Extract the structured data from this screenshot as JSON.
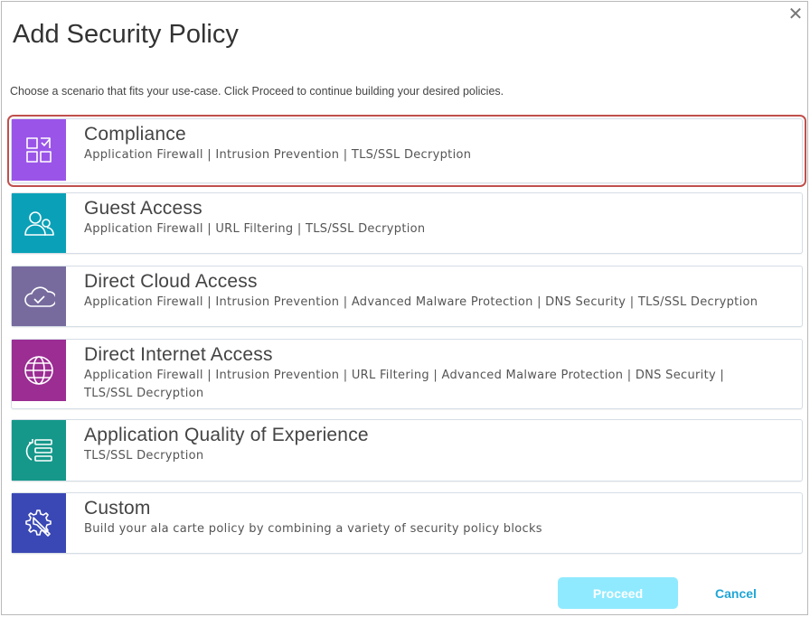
{
  "dialog": {
    "title": "Add Security Policy",
    "subtitle": "Choose a scenario that fits your use-case. Click Proceed to continue building your desired policies.",
    "close_icon": "close-icon"
  },
  "scenarios": [
    {
      "title": "Compliance",
      "desc": "Application Firewall | Intrusion Prevention | TLS/SSL Decryption",
      "icon": "checklist-grid-icon",
      "color": "#9a55e8",
      "selected": true
    },
    {
      "title": "Guest Access",
      "desc": "Application Firewall | URL Filtering | TLS/SSL Decryption",
      "icon": "users-icon",
      "color": "#0aa1b8"
    },
    {
      "title": "Direct Cloud Access",
      "desc": "Application Firewall | Intrusion Prevention | Advanced Malware Protection | DNS Security | TLS/SSL Decryption",
      "icon": "cloud-check-icon",
      "color": "#776b9e"
    },
    {
      "title": "Direct Internet Access",
      "desc": "Application Firewall | Intrusion Prevention | URL Filtering | Advanced Malware Protection | DNS Security | TLS/SSL Decryption",
      "icon": "globe-icon",
      "color": "#9b2d93"
    },
    {
      "title": "Application Quality of Experience",
      "desc": "TLS/SSL Decryption",
      "icon": "list-refresh-icon",
      "color": "#15988a"
    },
    {
      "title": "Custom",
      "desc": "Build your ala carte policy by combining a variety of security policy blocks",
      "icon": "gear-wrench-icon",
      "color": "#3a48b5"
    }
  ],
  "footer": {
    "proceed": "Proceed",
    "cancel": "Cancel"
  }
}
